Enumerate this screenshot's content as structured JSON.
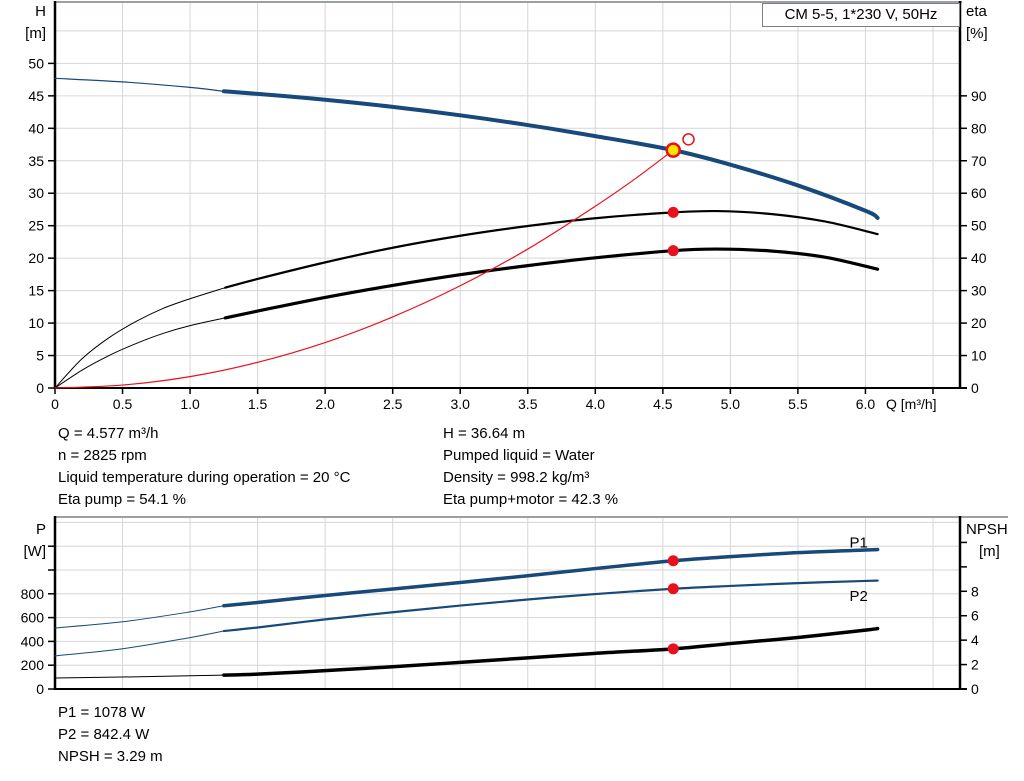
{
  "title_box": "CM 5-5, 1*230 V, 50Hz",
  "colors": {
    "blue": "#17497b",
    "black": "#000000",
    "red": "#e8111b",
    "yellow": "#ffe200",
    "grid": "#d6d6d6",
    "axis": "#000000",
    "border": "#9aa0a6"
  },
  "info_top": {
    "left": [
      "Q = 4.577 m³/h",
      "n = 2825 rpm",
      "Liquid temperature during operation = 20 °C",
      "Eta pump = 54.1 %"
    ],
    "right": [
      "H = 36.64 m",
      "Pumped liquid = Water",
      "Density = 998.2 kg/m³",
      "Eta pump+motor = 42.3 %"
    ]
  },
  "info_bottom": [
    "P1 = 1078 W",
    "P2 = 842.4 W",
    "NPSH = 3.29 m"
  ],
  "chart_data": [
    {
      "id": "performance",
      "type": "line",
      "title": "CM 5-5, 1*230 V, 50Hz",
      "x_axis": {
        "label": "Q [m³/h]",
        "min": 0,
        "max": 6.7
      },
      "left_axis": {
        "label_lines": [
          {
            "t": "H",
            "dx": 0
          },
          {
            "t": "[m]",
            "dx": 0
          }
        ],
        "min": 0,
        "max": 59.3
      },
      "right_axis": {
        "label_lines": [
          {
            "t": "eta",
            "dx": 0
          },
          {
            "t": "[%]",
            "dx": 0
          }
        ],
        "min": 0,
        "max": 118.6
      },
      "x_grid": [
        0.5,
        1,
        1.5,
        2,
        2.5,
        3,
        3.5,
        4,
        4.5,
        5,
        5.5,
        6,
        6.5
      ],
      "y_grid": [
        5,
        10,
        15,
        20,
        25,
        30,
        35,
        40,
        45,
        50,
        55
      ],
      "x_ticks": [
        {
          "v": 0,
          "l": "0"
        },
        {
          "v": 0.5,
          "l": "0.5"
        },
        {
          "v": 1,
          "l": "1.0"
        },
        {
          "v": 1.5,
          "l": "1.5"
        },
        {
          "v": 2,
          "l": "2.0"
        },
        {
          "v": 2.5,
          "l": "2.5"
        },
        {
          "v": 3,
          "l": "3.0"
        },
        {
          "v": 3.5,
          "l": "3.5"
        },
        {
          "v": 4,
          "l": "4.0"
        },
        {
          "v": 4.5,
          "l": "4.5"
        },
        {
          "v": 5,
          "l": "5.0"
        },
        {
          "v": 5.5,
          "l": "5.5"
        },
        {
          "v": 6,
          "l": "6.0"
        },
        {
          "v": 6.5,
          "l": ""
        }
      ],
      "left_ticks": [
        {
          "v": 0,
          "l": "0"
        },
        {
          "v": 5,
          "l": "5"
        },
        {
          "v": 10,
          "l": "10"
        },
        {
          "v": 15,
          "l": "15"
        },
        {
          "v": 20,
          "l": "20"
        },
        {
          "v": 25,
          "l": "25"
        },
        {
          "v": 30,
          "l": "30"
        },
        {
          "v": 35,
          "l": "35"
        },
        {
          "v": 40,
          "l": "40"
        },
        {
          "v": 45,
          "l": "45"
        },
        {
          "v": 50,
          "l": "50"
        }
      ],
      "right_ticks": [
        {
          "v": 0,
          "l": "0"
        },
        {
          "v": 10,
          "l": "10"
        },
        {
          "v": 20,
          "l": "20"
        },
        {
          "v": 30,
          "l": "30"
        },
        {
          "v": 40,
          "l": "40"
        },
        {
          "v": 50,
          "l": "50"
        },
        {
          "v": 60,
          "l": "60"
        },
        {
          "v": 70,
          "l": "70"
        },
        {
          "v": 80,
          "l": "80"
        },
        {
          "v": 90,
          "l": "90"
        }
      ],
      "series": [
        {
          "name": "head-curve",
          "axis": "left",
          "color": "#17497b",
          "width": 4,
          "thin": 1.2,
          "split": 1.25,
          "points": [
            [
              0,
              47.7
            ],
            [
              0.5,
              47.15
            ],
            [
              1,
              46.3
            ],
            [
              1.25,
              45.7
            ],
            [
              1.5,
              45.3
            ],
            [
              2,
              44.4
            ],
            [
              2.5,
              43.3
            ],
            [
              3,
              42
            ],
            [
              3.5,
              40.5
            ],
            [
              4,
              38.8
            ],
            [
              4.577,
              36.64
            ],
            [
              5,
              34.4
            ],
            [
              5.5,
              31.2
            ],
            [
              6,
              27.3
            ],
            [
              6.09,
              26.2
            ]
          ]
        },
        {
          "name": "eta-pump-curve",
          "axis": "right",
          "color": "#000000",
          "width": 2.2,
          "thin": 1,
          "split": 1.26,
          "points": [
            [
              0,
              0
            ],
            [
              0.2,
              9
            ],
            [
              0.4,
              15.5
            ],
            [
              0.6,
              20.5
            ],
            [
              0.8,
              24.5
            ],
            [
              1,
              27.5
            ],
            [
              1.26,
              30.9
            ],
            [
              1.5,
              33.6
            ],
            [
              2,
              38.7
            ],
            [
              2.5,
              43.2
            ],
            [
              3,
              46.9
            ],
            [
              3.5,
              49.9
            ],
            [
              4,
              52.3
            ],
            [
              4.577,
              54.1
            ],
            [
              4.9,
              54.5
            ],
            [
              5.3,
              53.6
            ],
            [
              5.7,
              51.3
            ],
            [
              6.09,
              47.4
            ]
          ]
        },
        {
          "name": "eta-pump-motor-curve",
          "axis": "right",
          "color": "#000000",
          "width": 3.2,
          "thin": 1,
          "split": 1.26,
          "points": [
            [
              0,
              0
            ],
            [
              0.2,
              5.5
            ],
            [
              0.4,
              10
            ],
            [
              0.6,
              13.7
            ],
            [
              0.8,
              16.8
            ],
            [
              1,
              19.2
            ],
            [
              1.26,
              21.6
            ],
            [
              1.5,
              23.7
            ],
            [
              2,
              27.9
            ],
            [
              2.5,
              31.6
            ],
            [
              3,
              34.9
            ],
            [
              3.5,
              37.7
            ],
            [
              4,
              40.1
            ],
            [
              4.577,
              42.3
            ],
            [
              4.9,
              42.8
            ],
            [
              5.3,
              42.2
            ],
            [
              5.7,
              40.3
            ],
            [
              6.09,
              36.6
            ]
          ]
        },
        {
          "name": "system-curve",
          "axis": "left",
          "color": "#e8111b",
          "width": 1.2,
          "points": [
            [
              0,
              0
            ],
            [
              0.5,
              0.45
            ],
            [
              1,
              1.75
            ],
            [
              1.5,
              3.95
            ],
            [
              2,
              7
            ],
            [
              2.5,
              10.95
            ],
            [
              3,
              15.75
            ],
            [
              3.5,
              21.4
            ],
            [
              4,
              28
            ],
            [
              4.3,
              32.3
            ],
            [
              4.577,
              36.64
            ]
          ]
        }
      ],
      "markers": [
        {
          "kind": "dot",
          "name": "duty-point",
          "q": 4.577,
          "v": 36.64,
          "axis": "left",
          "r": 6.5,
          "fill": "#ffe200",
          "stroke": "#e8111b",
          "sw": 2.5
        },
        {
          "kind": "dot",
          "name": "target-duty-point",
          "q": 4.69,
          "v": 38.3,
          "axis": "left",
          "r": 5.5,
          "fill": "none",
          "stroke": "#e8111b",
          "sw": 1.5
        },
        {
          "kind": "dot",
          "name": "eta-pump-point",
          "q": 4.577,
          "v": 54.1,
          "axis": "right",
          "r": 5.5,
          "fill": "#e8111b",
          "stroke": "none",
          "sw": 0
        },
        {
          "kind": "dot",
          "name": "eta-pump-motor-point",
          "q": 4.577,
          "v": 42.3,
          "axis": "right",
          "r": 5.5,
          "fill": "#e8111b",
          "stroke": "none",
          "sw": 0
        }
      ],
      "labels": []
    },
    {
      "id": "power",
      "type": "line",
      "title": "",
      "x_axis": {
        "label": "",
        "min": 0,
        "max": 6.7
      },
      "left_axis": {
        "label_lines": [
          {
            "t": "P",
            "dx": 0
          },
          {
            "t": "[W]",
            "dx": 0
          }
        ],
        "min": 0,
        "max": 1437
      },
      "right_axis": {
        "label_lines": [
          {
            "t": "NPSH",
            "dx": 0
          },
          {
            "t": "[m]",
            "dx": 13
          }
        ],
        "min": 0,
        "max": 14
      },
      "x_grid": [
        0.5,
        1,
        1.5,
        2,
        2.5,
        3,
        3.5,
        4,
        4.5,
        5,
        5.5,
        6,
        6.5
      ],
      "y_grid": [
        200,
        400,
        600,
        800,
        1000,
        1200,
        1400
      ],
      "x_ticks": [],
      "left_ticks": [
        {
          "v": 0,
          "l": "0"
        },
        {
          "v": 200,
          "l": "200"
        },
        {
          "v": 400,
          "l": "400"
        },
        {
          "v": 600,
          "l": "600"
        },
        {
          "v": 800,
          "l": "800"
        },
        {
          "v": 1000,
          "l": ""
        },
        {
          "v": 1200,
          "l": ""
        }
      ],
      "right_ticks": [
        {
          "v": 0,
          "l": "0"
        },
        {
          "v": 2,
          "l": "2"
        },
        {
          "v": 4,
          "l": "4"
        },
        {
          "v": 6,
          "l": "6"
        },
        {
          "v": 8,
          "l": "8"
        },
        {
          "v": 10,
          "l": ""
        },
        {
          "v": 12,
          "l": ""
        }
      ],
      "series": [
        {
          "name": "p1-curve",
          "axis": "left",
          "color": "#17497b",
          "width": 3.5,
          "thin": 1,
          "split": 1.25,
          "points": [
            [
              0,
              513
            ],
            [
              0.5,
              565
            ],
            [
              1,
              648
            ],
            [
              1.25,
              700
            ],
            [
              1.5,
              727
            ],
            [
              2,
              786
            ],
            [
              2.5,
              840
            ],
            [
              3,
              895
            ],
            [
              3.5,
              952
            ],
            [
              4,
              1012
            ],
            [
              4.577,
              1078
            ],
            [
              5,
              1112
            ],
            [
              5.5,
              1146
            ],
            [
              6,
              1168
            ],
            [
              6.09,
              1172
            ]
          ]
        },
        {
          "name": "p2-curve",
          "axis": "left",
          "color": "#17497b",
          "width": 2.2,
          "thin": 1,
          "split": 1.25,
          "points": [
            [
              0,
              278
            ],
            [
              0.5,
              338
            ],
            [
              1,
              432
            ],
            [
              1.25,
              487
            ],
            [
              1.5,
              517
            ],
            [
              2,
              585
            ],
            [
              2.5,
              645
            ],
            [
              3,
              701
            ],
            [
              3.5,
              752
            ],
            [
              4,
              798
            ],
            [
              4.577,
              842.4
            ],
            [
              5,
              866
            ],
            [
              5.5,
              890
            ],
            [
              6,
              908
            ],
            [
              6.09,
              911
            ]
          ]
        },
        {
          "name": "npsh-curve",
          "axis": "right",
          "color": "#000000",
          "width": 3.5,
          "thin": 1,
          "split": 1.25,
          "points": [
            [
              0,
              0.9
            ],
            [
              0.5,
              0.98
            ],
            [
              1,
              1.08
            ],
            [
              1.25,
              1.14
            ],
            [
              1.5,
              1.22
            ],
            [
              2,
              1.5
            ],
            [
              2.5,
              1.82
            ],
            [
              3,
              2.18
            ],
            [
              3.5,
              2.55
            ],
            [
              4,
              2.92
            ],
            [
              4.577,
              3.29
            ],
            [
              5,
              3.72
            ],
            [
              5.5,
              4.22
            ],
            [
              6,
              4.82
            ],
            [
              6.09,
              4.95
            ]
          ]
        }
      ],
      "markers": [
        {
          "kind": "dot",
          "name": "p1-point",
          "q": 4.577,
          "v": 1078,
          "axis": "left",
          "r": 5.5,
          "fill": "#e8111b",
          "stroke": "none",
          "sw": 0
        },
        {
          "kind": "dot",
          "name": "p2-point",
          "q": 4.577,
          "v": 842.4,
          "axis": "left",
          "r": 5.5,
          "fill": "#e8111b",
          "stroke": "none",
          "sw": 0
        },
        {
          "kind": "dot",
          "name": "npsh-point",
          "q": 4.577,
          "v": 3.29,
          "axis": "right",
          "r": 5.5,
          "fill": "#e8111b",
          "stroke": "none",
          "sw": 0
        }
      ],
      "labels": [
        {
          "text": "P1",
          "q": 5.95,
          "v": 1190,
          "axis": "left",
          "color": "#17497b"
        },
        {
          "text": "P2",
          "q": 5.95,
          "v": 740,
          "axis": "left",
          "color": "#17497b"
        }
      ]
    }
  ]
}
